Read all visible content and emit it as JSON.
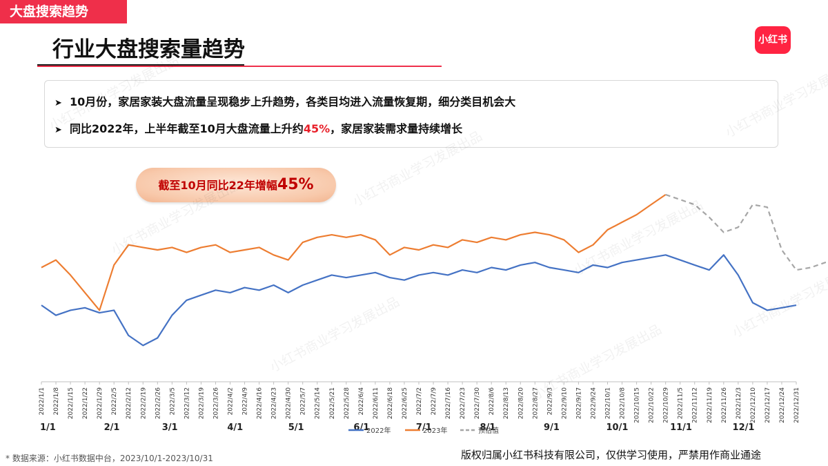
{
  "header": {
    "section_tag": "大盘搜索趋势",
    "title": "行业大盘搜索量趋势",
    "logo_text": "小红书"
  },
  "bullets": {
    "line1": "10月份，家居家装大盘流量呈现稳步上升趋势，各类目均进入流量恢复期，细分类目机会大",
    "line2_pre": "同比2022年，上半年截至10月大盘流量上升约",
    "line2_hl": "45%",
    "line2_post": "，家居家装需求量持续增长"
  },
  "callout": {
    "text": "截至10月同比22年增幅",
    "value": "45%"
  },
  "watermark": "小红书商业学习发展出品",
  "footer": {
    "source": "* 数据来源：小红书数据中台，2023/10/1-2023/10/31",
    "copyright": "版权归属小红书科技有限公司，仅供学习使用，严禁用作商业通途"
  },
  "colors": {
    "series_2022": "#4472c4",
    "series_2023": "#ed7d31",
    "series_est": "#a6a6a6",
    "accent": "#ef2f4a"
  },
  "chart_data": {
    "type": "line",
    "y_axis_visible": false,
    "x_tick_labels": [
      "2022/1/1",
      "2022/1/8",
      "2022/1/15",
      "2022/1/22",
      "2022/1/29",
      "2022/2/5",
      "2022/2/12",
      "2022/2/19",
      "2022/2/26",
      "2022/3/5",
      "2022/3/12",
      "2022/3/19",
      "2022/3/26",
      "2022/4/2",
      "2022/4/9",
      "2022/4/16",
      "2022/4/23",
      "2022/4/30",
      "2022/5/7",
      "2022/5/14",
      "2022/5/21",
      "2022/5/28",
      "2022/6/4",
      "2022/6/11",
      "2022/6/18",
      "2022/6/25",
      "2022/7/2",
      "2022/7/9",
      "2022/7/16",
      "2022/7/23",
      "2022/7/30",
      "2022/8/6",
      "2022/8/13",
      "2022/8/20",
      "2022/8/27",
      "2022/9/3",
      "2022/9/10",
      "2022/9/17",
      "2022/9/24",
      "2022/10/1",
      "2022/10/8",
      "2022/10/15",
      "2022/10/22",
      "2022/10/29",
      "2022/11/5",
      "2022/11/12",
      "2022/11/19",
      "2022/11/26",
      "2022/12/3",
      "2022/12/10",
      "2022/12/17",
      "2022/12/24",
      "2022/12/31"
    ],
    "month_labels": [
      "1/1",
      "2/1",
      "3/1",
      "4/1",
      "5/1",
      "6/1",
      "7/1",
      "8/1",
      "9/1",
      "10/1",
      "11/1",
      "12/1"
    ],
    "legend": [
      "2022年",
      "2023年",
      "预估值"
    ],
    "series": [
      {
        "name": "2022年",
        "color": "#4472c4",
        "weekly_values": [
          40,
          36,
          38,
          39,
          37,
          38,
          28,
          24,
          27,
          36,
          42,
          44,
          46,
          45,
          47,
          46,
          48,
          45,
          48,
          50,
          52,
          51,
          52,
          53,
          51,
          50,
          52,
          53,
          52,
          54,
          53,
          55,
          54,
          56,
          57,
          55,
          54,
          53,
          56,
          55,
          57,
          58,
          59,
          60,
          58,
          56,
          54,
          60,
          52,
          41,
          38,
          39,
          40
        ]
      },
      {
        "name": "2023年",
        "color": "#ed7d31",
        "weekly_values": [
          55,
          58,
          52,
          45,
          38,
          56,
          64,
          63,
          62,
          63,
          61,
          63,
          64,
          61,
          62,
          63,
          60,
          58,
          65,
          67,
          68,
          67,
          68,
          66,
          60,
          63,
          62,
          64,
          63,
          66,
          65,
          67,
          66,
          68,
          69,
          68,
          66,
          61,
          64,
          70,
          73,
          76,
          80,
          84
        ]
      },
      {
        "name": "预估值",
        "color": "#a6a6a6",
        "weekly_values": [
          84,
          82,
          80,
          75,
          69,
          71,
          80,
          79,
          62,
          54,
          55,
          57,
          57,
          56
        ]
      }
    ],
    "est_start_week": 43
  }
}
